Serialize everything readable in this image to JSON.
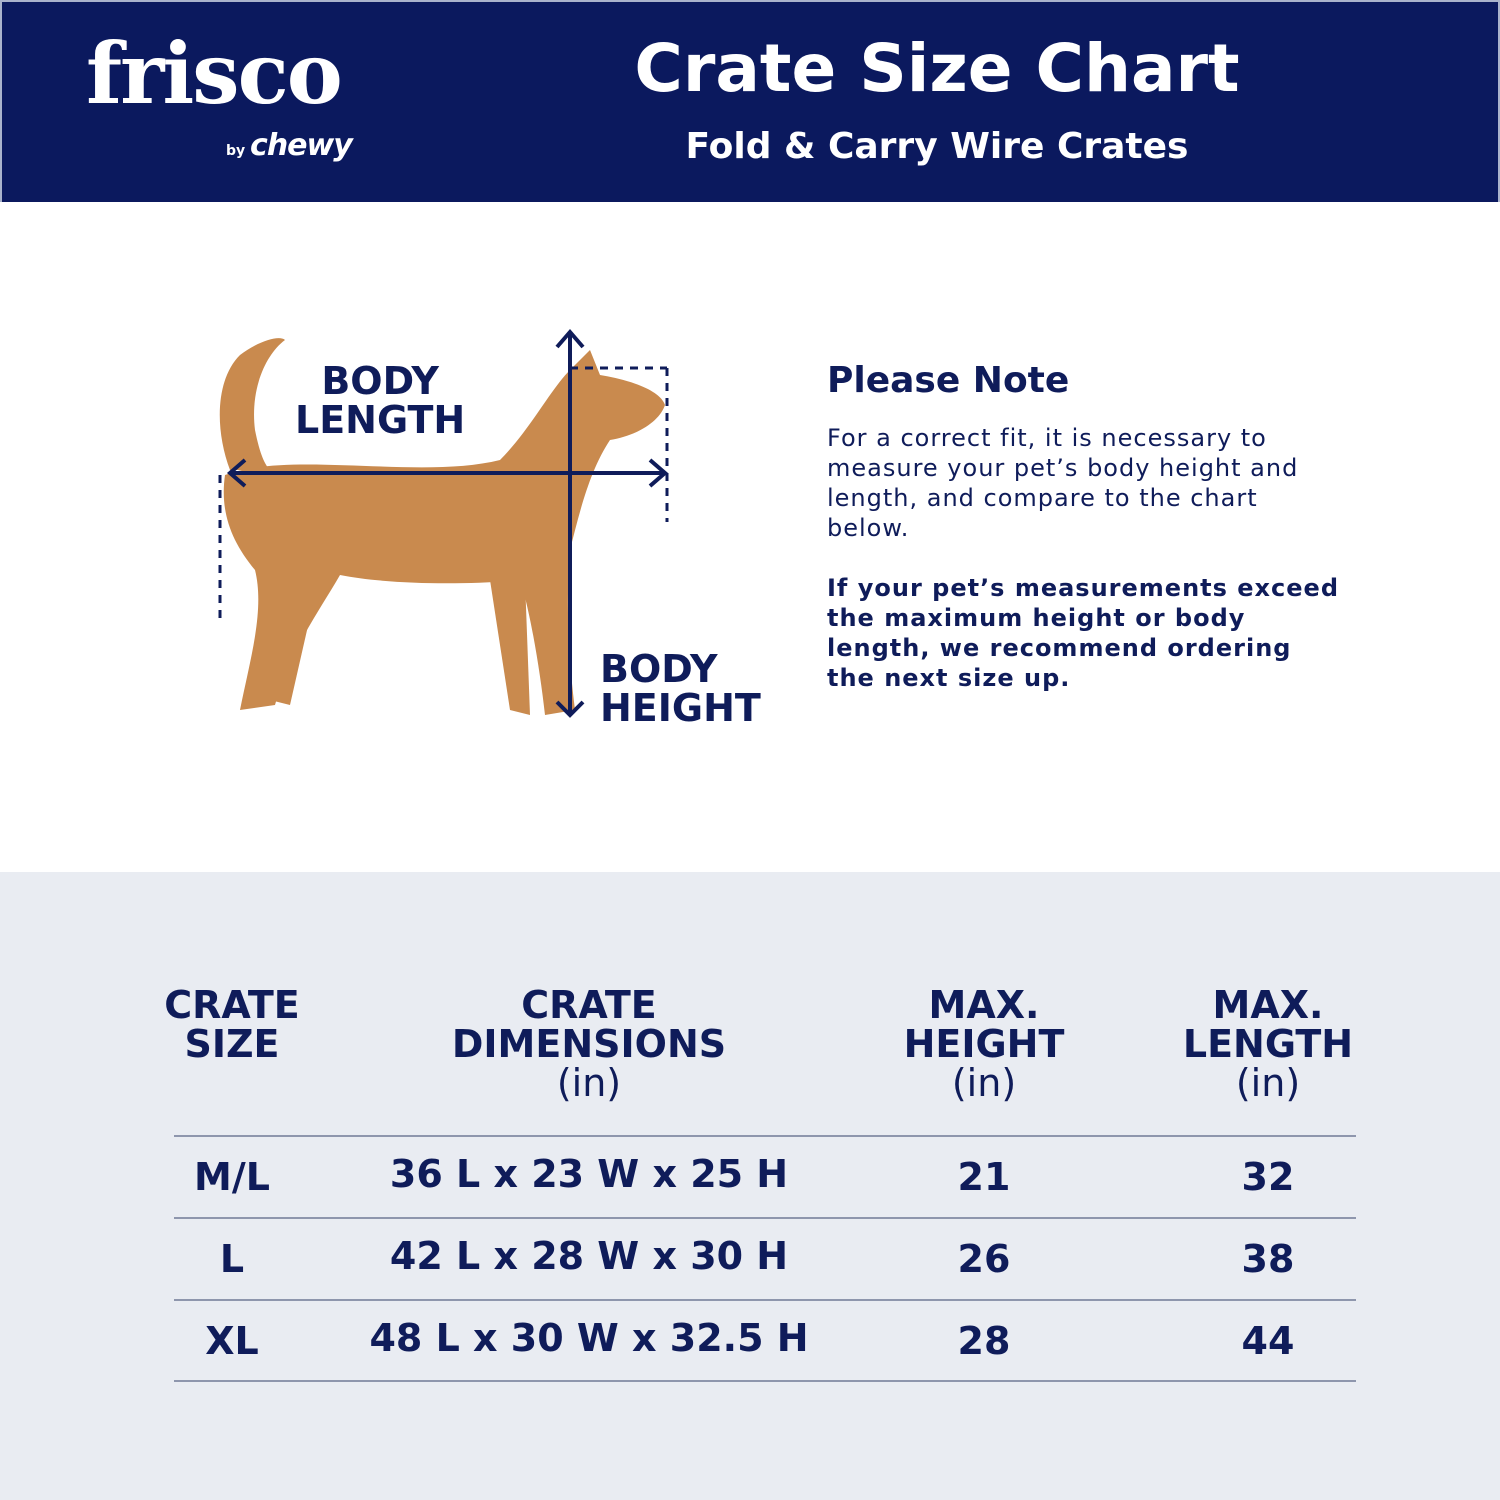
{
  "header": {
    "logo_text": "frisco",
    "logo_by": "by",
    "logo_sub": "chewy",
    "title": "Crate Size Chart",
    "subtitle": "Fold & Carry Wire Crates"
  },
  "diagram": {
    "length_label_1": "BODY",
    "length_label_2": "LENGTH",
    "height_label_1": "BODY",
    "height_label_2": "HEIGHT"
  },
  "note": {
    "heading": "Please Note",
    "para1": "For a correct fit, it is necessary to measure your pet’s body height and length, and compare to the chart below.",
    "para2": "If your pet’s measurements exceed the maximum height or body length, we recommend ordering the next size up."
  },
  "table": {
    "headers": [
      {
        "line1": "CRATE",
        "line2": "SIZE",
        "unit": ""
      },
      {
        "line1": "CRATE",
        "line2": "DIMENSIONS",
        "unit": "(in)"
      },
      {
        "line1": "MAX.",
        "line2": "HEIGHT",
        "unit": "(in)"
      },
      {
        "line1": "MAX.",
        "line2": "LENGTH",
        "unit": "(in)"
      }
    ],
    "rows": [
      {
        "size": "M/L",
        "dimensions": "36 L x 23 W x 25 H",
        "max_height": "21",
        "max_length": "32"
      },
      {
        "size": "L",
        "dimensions": "42 L x 28 W x 30 H",
        "max_height": "26",
        "max_length": "38"
      },
      {
        "size": "XL",
        "dimensions": "48 L x 30 W x 32.5 H",
        "max_height": "28",
        "max_length": "44"
      }
    ]
  },
  "colors": {
    "navy": "#0b195e",
    "text": "#0f1c5a",
    "table_bg": "#e9ecf2",
    "dog": "#c98a4e"
  }
}
